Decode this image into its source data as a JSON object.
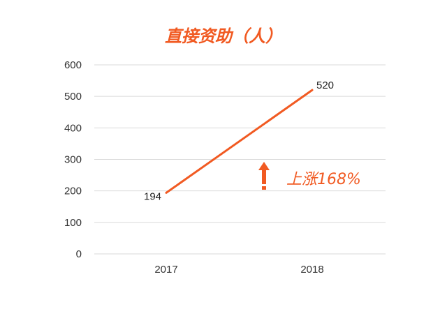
{
  "colors": {
    "accent": "#f15a22",
    "grid": "#d9d9d9",
    "axis_text": "#333333"
  },
  "chart_data": {
    "type": "line",
    "title": "直接资助（人）",
    "xlabel": "",
    "ylabel": "",
    "categories": [
      "2017",
      "2018"
    ],
    "series": [
      {
        "values": [
          194,
          520
        ]
      }
    ],
    "data_labels": [
      "194",
      "520"
    ],
    "ylim": [
      0,
      600
    ],
    "yticks": [
      0,
      100,
      200,
      300,
      400,
      500,
      600
    ],
    "ytick_labels": [
      "0",
      "100",
      "200",
      "300",
      "400",
      "500",
      "600"
    ],
    "grid": true,
    "legend": "none",
    "annotation": {
      "text": "上涨168%",
      "icon": "arrow-up-icon"
    }
  }
}
